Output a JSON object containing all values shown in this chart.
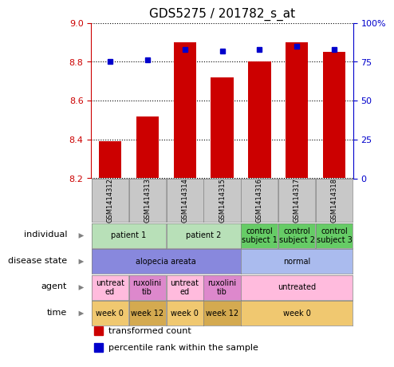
{
  "title": "GDS5275 / 201782_s_at",
  "samples": [
    "GSM1414312",
    "GSM1414313",
    "GSM1414314",
    "GSM1414315",
    "GSM1414316",
    "GSM1414317",
    "GSM1414318"
  ],
  "bar_values": [
    8.39,
    8.52,
    8.9,
    8.72,
    8.8,
    8.9,
    8.85
  ],
  "percentile_values": [
    75,
    76,
    83,
    82,
    83,
    85,
    83
  ],
  "y_min": 8.2,
  "y_max": 9.0,
  "y_ticks": [
    8.2,
    8.4,
    8.6,
    8.8,
    9.0
  ],
  "y2_ticks": [
    0,
    25,
    50,
    75,
    100
  ],
  "bar_color": "#cc0000",
  "dot_color": "#0000cc",
  "bar_bottom": 8.2,
  "sample_row_color": "#c8c8c8",
  "annotation_rows": [
    {
      "label": "individual",
      "cells": [
        {
          "text": "patient 1",
          "colspan": 2,
          "color": "#b8e0b8"
        },
        {
          "text": "patient 2",
          "colspan": 2,
          "color": "#b8e0b8"
        },
        {
          "text": "control\nsubject 1",
          "colspan": 1,
          "color": "#66cc66"
        },
        {
          "text": "control\nsubject 2",
          "colspan": 1,
          "color": "#66cc66"
        },
        {
          "text": "control\nsubject 3",
          "colspan": 1,
          "color": "#66cc66"
        }
      ]
    },
    {
      "label": "disease state",
      "cells": [
        {
          "text": "alopecia areata",
          "colspan": 4,
          "color": "#8888dd"
        },
        {
          "text": "normal",
          "colspan": 3,
          "color": "#aabbee"
        }
      ]
    },
    {
      "label": "agent",
      "cells": [
        {
          "text": "untreat\ned",
          "colspan": 1,
          "color": "#ffbbdd"
        },
        {
          "text": "ruxolini\ntib",
          "colspan": 1,
          "color": "#dd88cc"
        },
        {
          "text": "untreat\ned",
          "colspan": 1,
          "color": "#ffbbdd"
        },
        {
          "text": "ruxolini\ntib",
          "colspan": 1,
          "color": "#dd88cc"
        },
        {
          "text": "untreated",
          "colspan": 3,
          "color": "#ffbbdd"
        }
      ]
    },
    {
      "label": "time",
      "cells": [
        {
          "text": "week 0",
          "colspan": 1,
          "color": "#f0c870"
        },
        {
          "text": "week 12",
          "colspan": 1,
          "color": "#d4aa50"
        },
        {
          "text": "week 0",
          "colspan": 1,
          "color": "#f0c870"
        },
        {
          "text": "week 12",
          "colspan": 1,
          "color": "#d4aa50"
        },
        {
          "text": "week 0",
          "colspan": 3,
          "color": "#f0c870"
        }
      ]
    }
  ],
  "legend": [
    {
      "color": "#cc0000",
      "label": "transformed count"
    },
    {
      "color": "#0000cc",
      "label": "percentile rank within the sample"
    }
  ]
}
